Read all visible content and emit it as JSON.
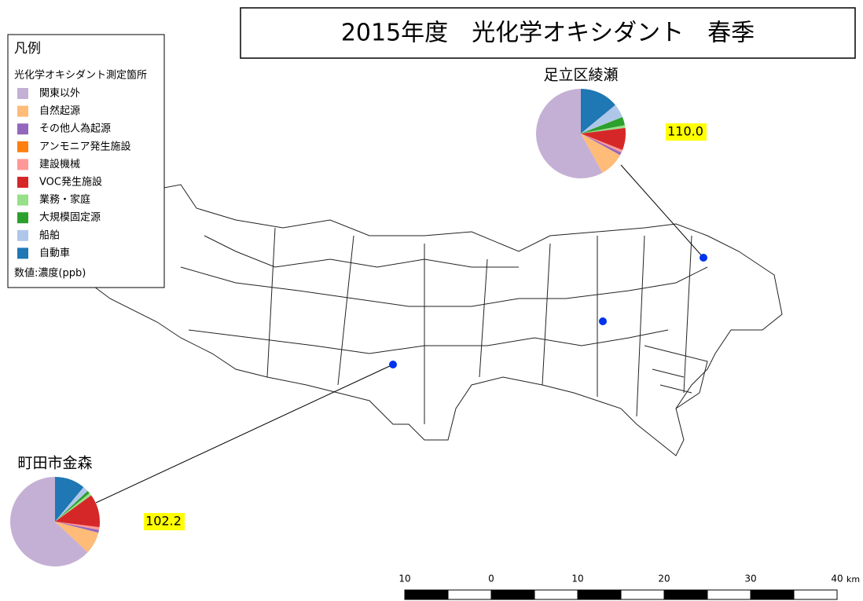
{
  "title": "2015年度　光化学オキシダント　春季",
  "legend": {
    "title": "凡例",
    "subtitle": "光化学オキシダント測定箇所",
    "categories": [
      "関東以外",
      "自然起源",
      "その他人為起源",
      "アンモニア発生施設",
      "建設機械",
      "VOC発生施設",
      "業務・家庭",
      "大規模固定源",
      "船舶",
      "自動車"
    ],
    "colors": [
      "#c5b0d5",
      "#ffbb78",
      "#9467bd",
      "#ff7f0e",
      "#ff9896",
      "#d62728",
      "#98df8a",
      "#2ca02c",
      "#aec7e8",
      "#1f77b4"
    ],
    "note": "数値:濃度(ppb)"
  },
  "chart_data": [
    {
      "type": "pie",
      "title": "足立区綾瀬",
      "values": [
        58,
        9,
        1,
        0,
        1,
        8,
        1,
        3,
        5,
        14
      ],
      "concentration": 110,
      "concentration_label": "110.0"
    },
    {
      "type": "pie",
      "title": "町田市金森",
      "values": [
        63,
        8,
        1,
        0,
        1,
        12,
        1,
        1,
        2,
        11
      ],
      "concentration": 102.2,
      "concentration_label": "102.2"
    }
  ],
  "scale_bar": {
    "labels": [
      "10",
      "0",
      "10",
      "20",
      "30",
      "40"
    ],
    "unit": "km"
  }
}
